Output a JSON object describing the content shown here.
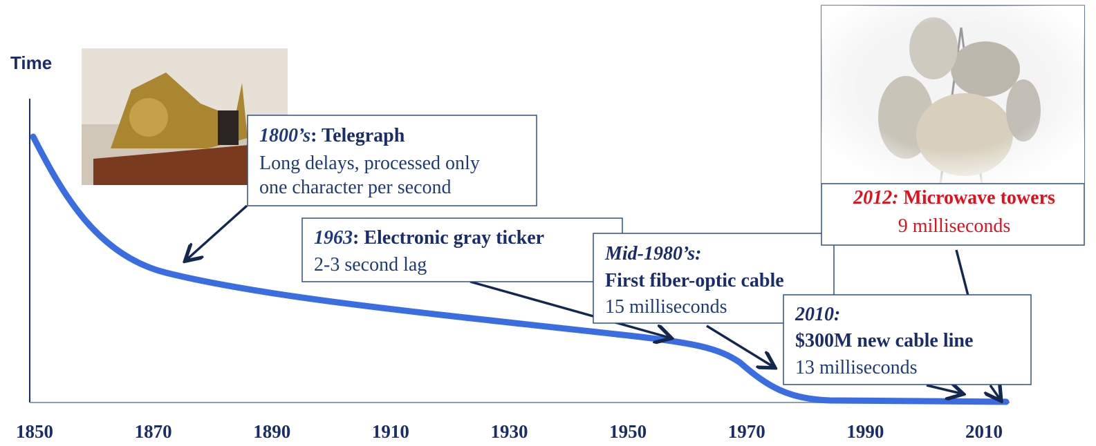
{
  "axis": {
    "y_label": "Time",
    "x_labels": [
      "1850",
      "1870",
      "1890",
      "1910",
      "1930",
      "1950",
      "1970",
      "1990",
      "2010"
    ]
  },
  "callouts": [
    {
      "era": "1800’s",
      "title": ": Telegraph",
      "lines": [
        "Long delays, processed only",
        "one character per second"
      ]
    },
    {
      "era": "1963",
      "title": ": Electronic gray ticker",
      "lines": [
        "2-3 second lag"
      ]
    },
    {
      "era": "Mid-1980’s:",
      "title": "First fiber-optic cable",
      "lines": [
        "15 milliseconds"
      ]
    },
    {
      "era": "2010:",
      "title": "$300M  new cable line",
      "lines": [
        "13 milliseconds"
      ]
    },
    {
      "era": "2012:",
      "title": " Microwave towers",
      "lines": [
        "9 milliseconds"
      ]
    }
  ]
}
